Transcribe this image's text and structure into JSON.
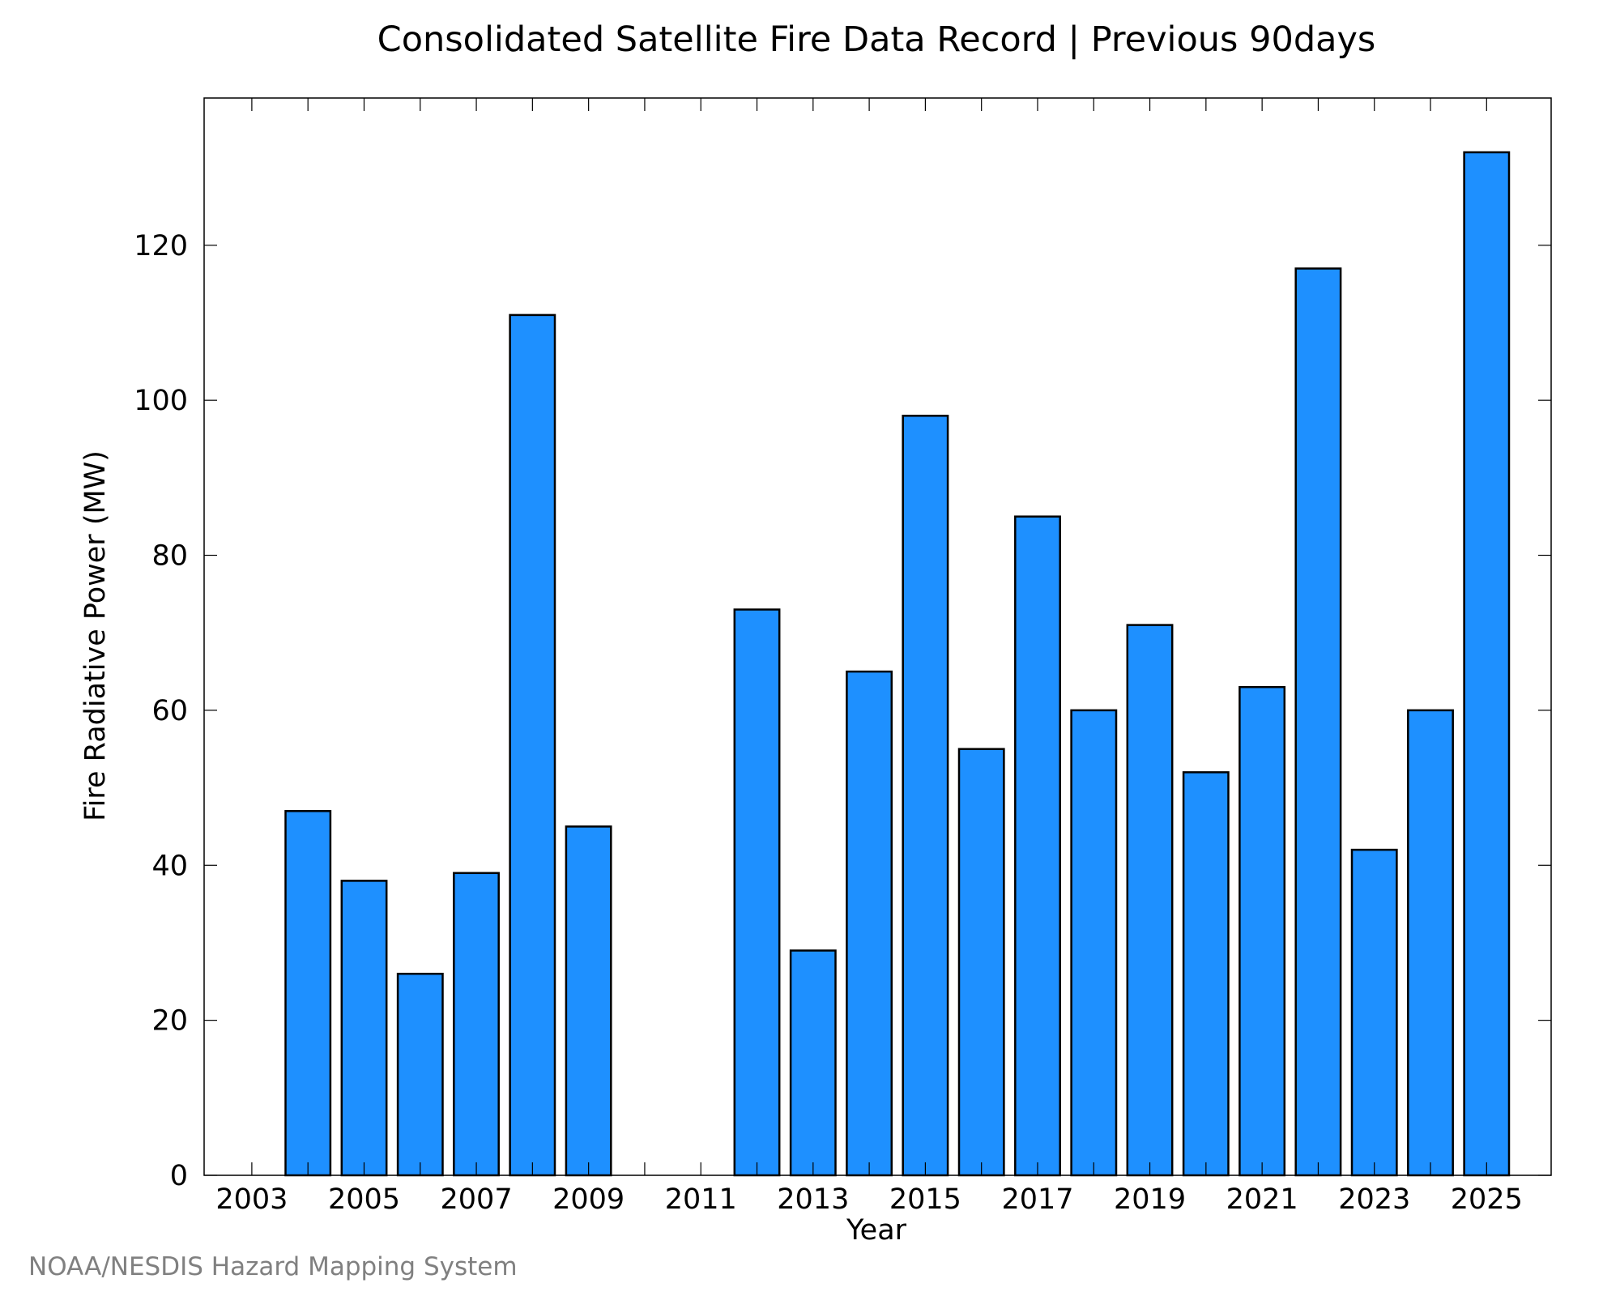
{
  "chart_data": {
    "type": "bar",
    "title": "Consolidated Satellite Fire Data Record | Previous 90days",
    "xlabel": "Year",
    "ylabel": "Fire Radiative Power (MW)",
    "categories": [
      "2003",
      "2004",
      "2005",
      "2006",
      "2007",
      "2008",
      "2009",
      "2010",
      "2011",
      "2012",
      "2013",
      "2014",
      "2015",
      "2016",
      "2017",
      "2018",
      "2019",
      "2020",
      "2021",
      "2022",
      "2023",
      "2024",
      "2025"
    ],
    "values": [
      0,
      47,
      38,
      26,
      39,
      111,
      45,
      0,
      0,
      73,
      29,
      65,
      98,
      55,
      85,
      60,
      71,
      52,
      63,
      117,
      42,
      60,
      132
    ],
    "x_tick_labels": [
      "2003",
      "2005",
      "2007",
      "2009",
      "2011",
      "2013",
      "2015",
      "2017",
      "2019",
      "2021",
      "2023",
      "2025"
    ],
    "y_ticks": [
      0,
      20,
      40,
      60,
      80,
      100,
      120
    ],
    "ylim": [
      0,
      139
    ],
    "xlim": [
      2002.15,
      2026.15
    ],
    "grid": false,
    "bar_color": "#1e90ff",
    "bar_edge_color": "#000000"
  },
  "credit": "NOAA/NESDIS Hazard Mapping System"
}
